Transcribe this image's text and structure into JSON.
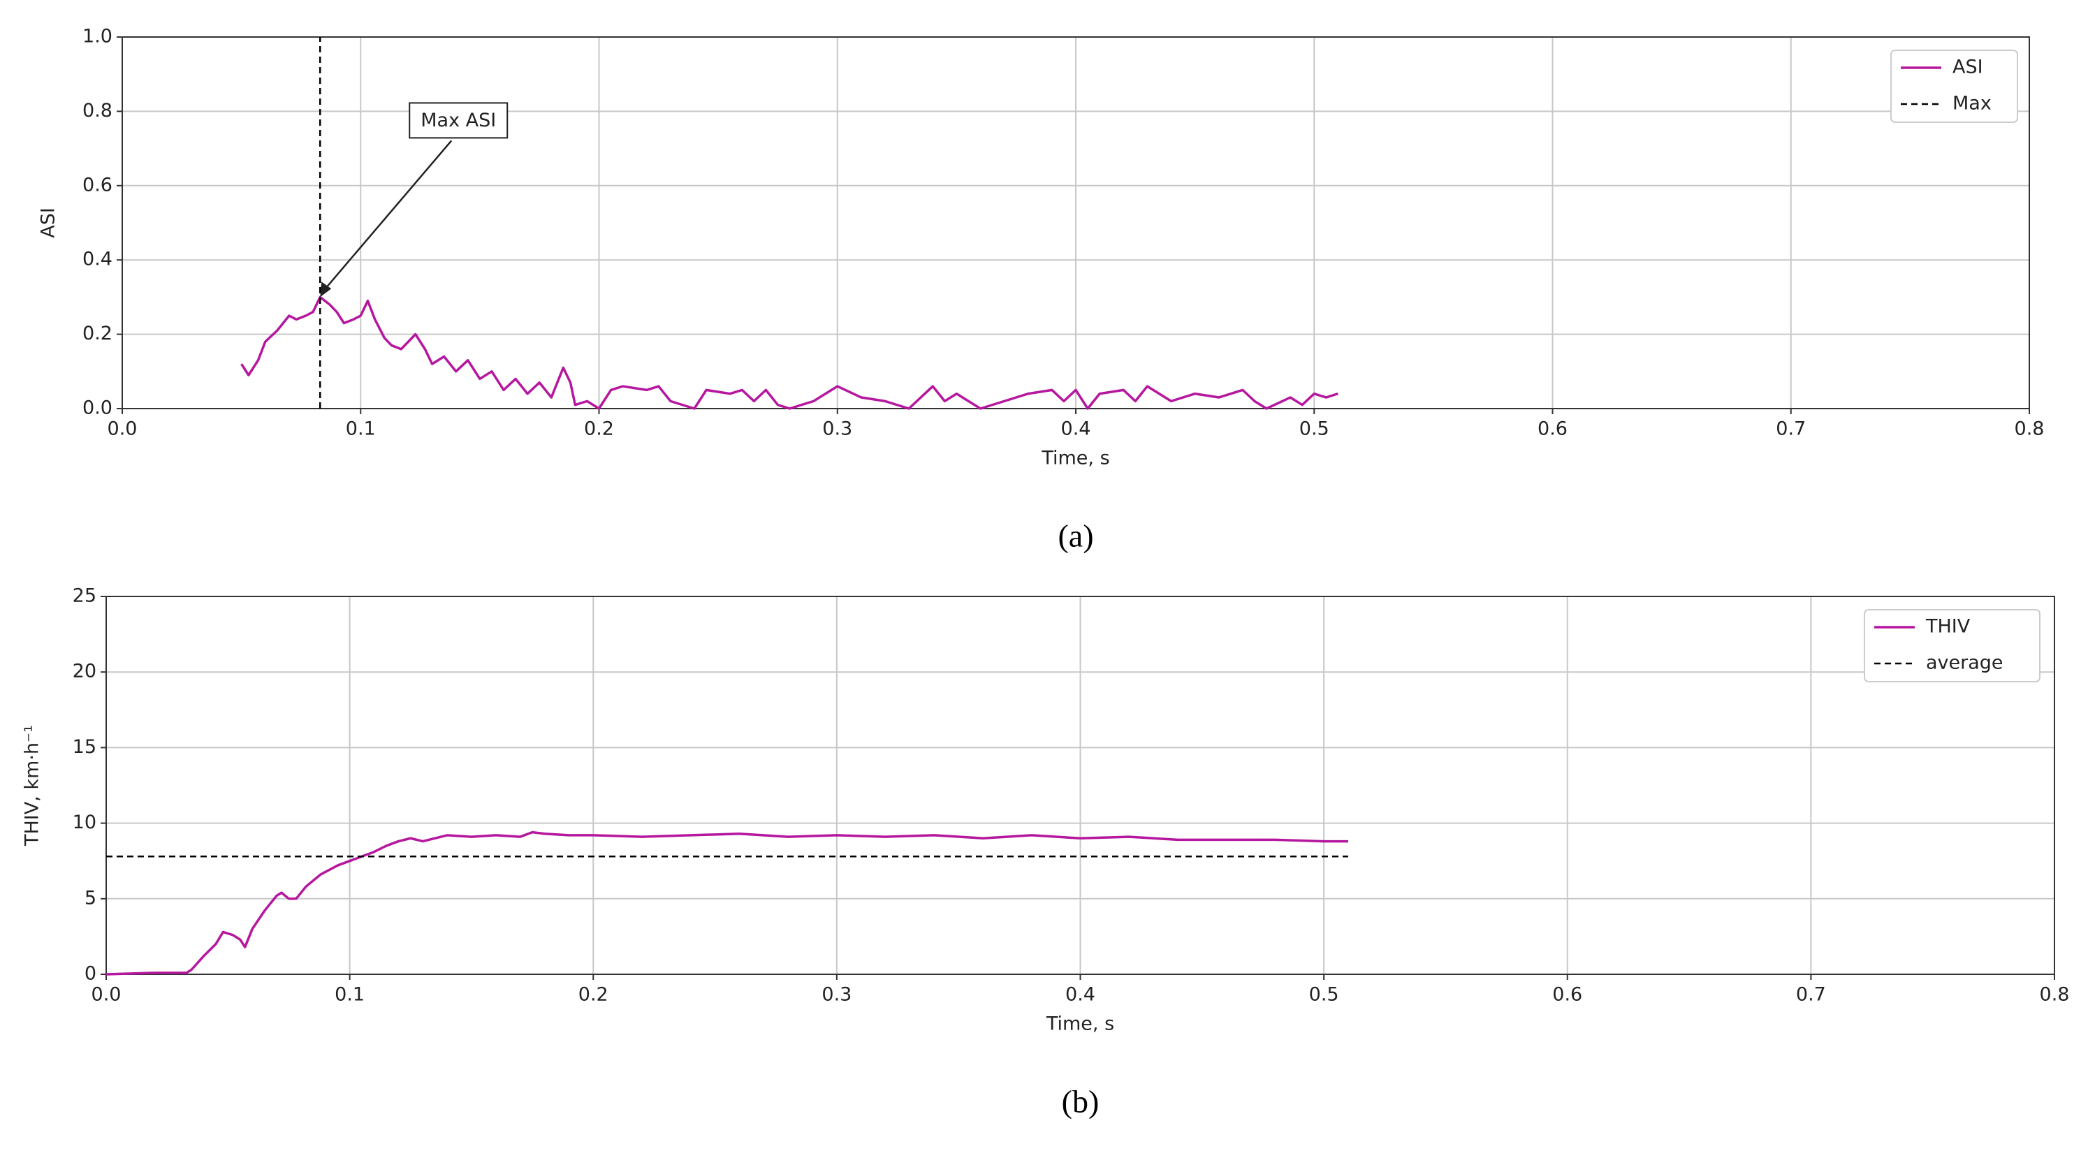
{
  "chart_data": [
    {
      "type": "line",
      "caption": "(a)",
      "x_label": "Time, s",
      "y_label": "ASI",
      "xlim": [
        0,
        0.8
      ],
      "xticks": [
        {
          "value": 0,
          "label": "0.0"
        },
        0.1,
        0.2,
        0.3,
        0.4,
        0.5,
        0.6,
        0.7,
        0.8
      ],
      "ylim": [
        0,
        1
      ],
      "yticks": [
        {
          "value": 0,
          "label": "0.0"
        },
        0.2,
        0.4,
        0.6,
        0.8,
        {
          "value": 1,
          "label": "1.0"
        }
      ],
      "grid": true,
      "legend": "upper right",
      "annotation": {
        "text": "Max ASI",
        "x": 0.083,
        "y": 0.3
      },
      "series": [
        {
          "name": "ASI",
          "color": "#b5179e",
          "x": [
            0.05,
            0.053,
            0.057,
            0.06,
            0.065,
            0.07,
            0.073,
            0.077,
            0.08,
            0.083,
            0.087,
            0.09,
            0.093,
            0.097,
            0.1,
            0.103,
            0.106,
            0.11,
            0.113,
            0.117,
            0.12,
            0.123,
            0.127,
            0.13,
            0.135,
            0.14,
            0.145,
            0.15,
            0.155,
            0.16,
            0.165,
            0.17,
            0.175,
            0.18,
            0.185,
            0.188,
            0.19,
            0.195,
            0.2,
            0.205,
            0.21,
            0.22,
            0.225,
            0.23,
            0.24,
            0.245,
            0.255,
            0.26,
            0.265,
            0.27,
            0.275,
            0.28,
            0.29,
            0.3,
            0.31,
            0.32,
            0.33,
            0.34,
            0.345,
            0.35,
            0.36,
            0.37,
            0.38,
            0.39,
            0.395,
            0.4,
            0.405,
            0.41,
            0.42,
            0.425,
            0.43,
            0.44,
            0.45,
            0.46,
            0.47,
            0.475,
            0.48,
            0.49,
            0.495,
            0.5,
            0.505,
            0.51
          ],
          "values": [
            0.12,
            0.09,
            0.13,
            0.18,
            0.21,
            0.25,
            0.24,
            0.25,
            0.26,
            0.3,
            0.28,
            0.26,
            0.23,
            0.24,
            0.25,
            0.29,
            0.24,
            0.19,
            0.17,
            0.16,
            0.18,
            0.2,
            0.16,
            0.12,
            0.14,
            0.1,
            0.13,
            0.08,
            0.1,
            0.05,
            0.08,
            0.04,
            0.07,
            0.03,
            0.11,
            0.07,
            0.01,
            0.02,
            0,
            0.05,
            0.06,
            0.05,
            0.06,
            0.02,
            0,
            0.05,
            0.04,
            0.05,
            0.02,
            0.05,
            0.01,
            0,
            0.02,
            0.06,
            0.03,
            0.02,
            0,
            0.06,
            0.02,
            0.04,
            0,
            0.02,
            0.04,
            0.05,
            0.02,
            0.05,
            0,
            0.04,
            0.05,
            0.02,
            0.06,
            0.02,
            0.04,
            0.03,
            0.05,
            0.02,
            0,
            0.03,
            0.01,
            0.04,
            0.03,
            0.04
          ]
        },
        {
          "name": "Max",
          "color": "#000000",
          "dashed": true,
          "x": [
            0.083,
            0.083
          ],
          "values": [
            0,
            1
          ]
        }
      ]
    },
    {
      "type": "line",
      "caption": "(b)",
      "x_label": "Time, s",
      "y_label": "THIV, km·h⁻¹",
      "xlim": [
        0,
        0.8
      ],
      "xticks": [
        {
          "value": 0,
          "label": "0.0"
        },
        0.1,
        0.2,
        0.3,
        0.4,
        0.5,
        0.6,
        0.7,
        0.8
      ],
      "ylim": [
        0,
        25
      ],
      "yticks": [
        0,
        5,
        10,
        15,
        20,
        25
      ],
      "grid": true,
      "legend": "upper right",
      "series": [
        {
          "name": "THIV",
          "color": "#b5179e",
          "x": [
            0,
            0.02,
            0.033,
            0.035,
            0.04,
            0.045,
            0.048,
            0.052,
            0.055,
            0.057,
            0.06,
            0.065,
            0.07,
            0.072,
            0.075,
            0.078,
            0.082,
            0.088,
            0.095,
            0.1,
            0.105,
            0.11,
            0.115,
            0.12,
            0.125,
            0.13,
            0.14,
            0.15,
            0.16,
            0.17,
            0.175,
            0.18,
            0.19,
            0.2,
            0.22,
            0.24,
            0.26,
            0.28,
            0.3,
            0.32,
            0.34,
            0.36,
            0.38,
            0.4,
            0.42,
            0.44,
            0.46,
            0.48,
            0.5,
            0.51
          ],
          "values": [
            0,
            0.1,
            0.1,
            0.3,
            1.2,
            2,
            2.8,
            2.6,
            2.3,
            1.8,
            3,
            4.2,
            5.2,
            5.4,
            5,
            5,
            5.8,
            6.6,
            7.2,
            7.5,
            7.8,
            8.1,
            8.5,
            8.8,
            9,
            8.8,
            9.2,
            9.1,
            9.2,
            9.1,
            9.4,
            9.3,
            9.2,
            9.2,
            9.1,
            9.2,
            9.3,
            9.1,
            9.2,
            9.1,
            9.2,
            9,
            9.2,
            9,
            9.1,
            8.9,
            8.9,
            8.9,
            8.8,
            8.8
          ]
        },
        {
          "name": "average",
          "color": "#000000",
          "dashed": true,
          "x": [
            0,
            0.51
          ],
          "values": [
            7.8,
            7.8
          ]
        }
      ]
    }
  ]
}
